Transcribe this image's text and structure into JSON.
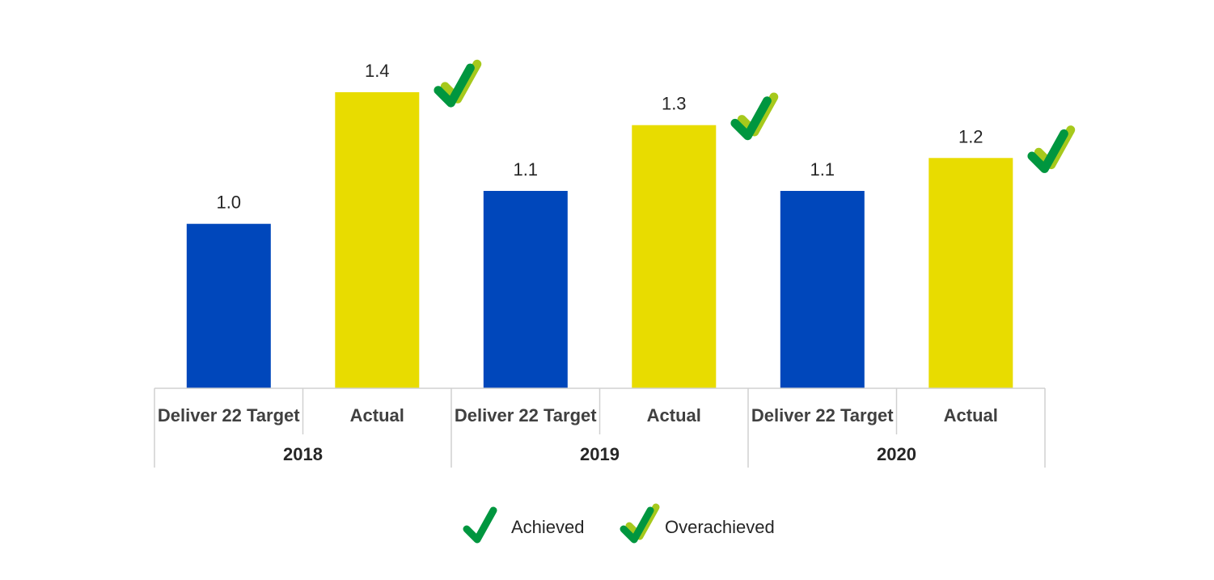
{
  "chart_data": {
    "type": "bar",
    "groups": [
      {
        "label": "2018",
        "bars": [
          {
            "category": "Deliver 22 Target",
            "value": 1.0,
            "value_label": "1.0",
            "color": "#0047BB",
            "status": ""
          },
          {
            "category": "Actual",
            "value": 1.4,
            "value_label": "1.4",
            "color": "#E8DC00",
            "status": "overachieved"
          }
        ]
      },
      {
        "label": "2019",
        "bars": [
          {
            "category": "Deliver 22 Target",
            "value": 1.1,
            "value_label": "1.1",
            "color": "#0047BB",
            "status": ""
          },
          {
            "category": "Actual",
            "value": 1.3,
            "value_label": "1.3",
            "color": "#E8DC00",
            "status": "overachieved"
          }
        ]
      },
      {
        "label": "2020",
        "bars": [
          {
            "category": "Deliver 22 Target",
            "value": 1.1,
            "value_label": "1.1",
            "color": "#0047BB",
            "status": ""
          },
          {
            "category": "Actual",
            "value": 1.2,
            "value_label": "1.2",
            "color": "#E8DC00",
            "status": "overachieved"
          }
        ]
      }
    ],
    "ylim": [
      0.5,
      1.4
    ],
    "grid": false,
    "legend_position": "bottom-center",
    "legend": [
      {
        "label": "Achieved",
        "icon": "check-icon"
      },
      {
        "label": "Overachieved",
        "icon": "double-check-icon"
      }
    ]
  },
  "colors": {
    "target": "#0047BB",
    "actual": "#E8DC00",
    "check_dark": "#00963F",
    "check_light": "#A6C91C",
    "axis_line": "#D0D0D0"
  }
}
